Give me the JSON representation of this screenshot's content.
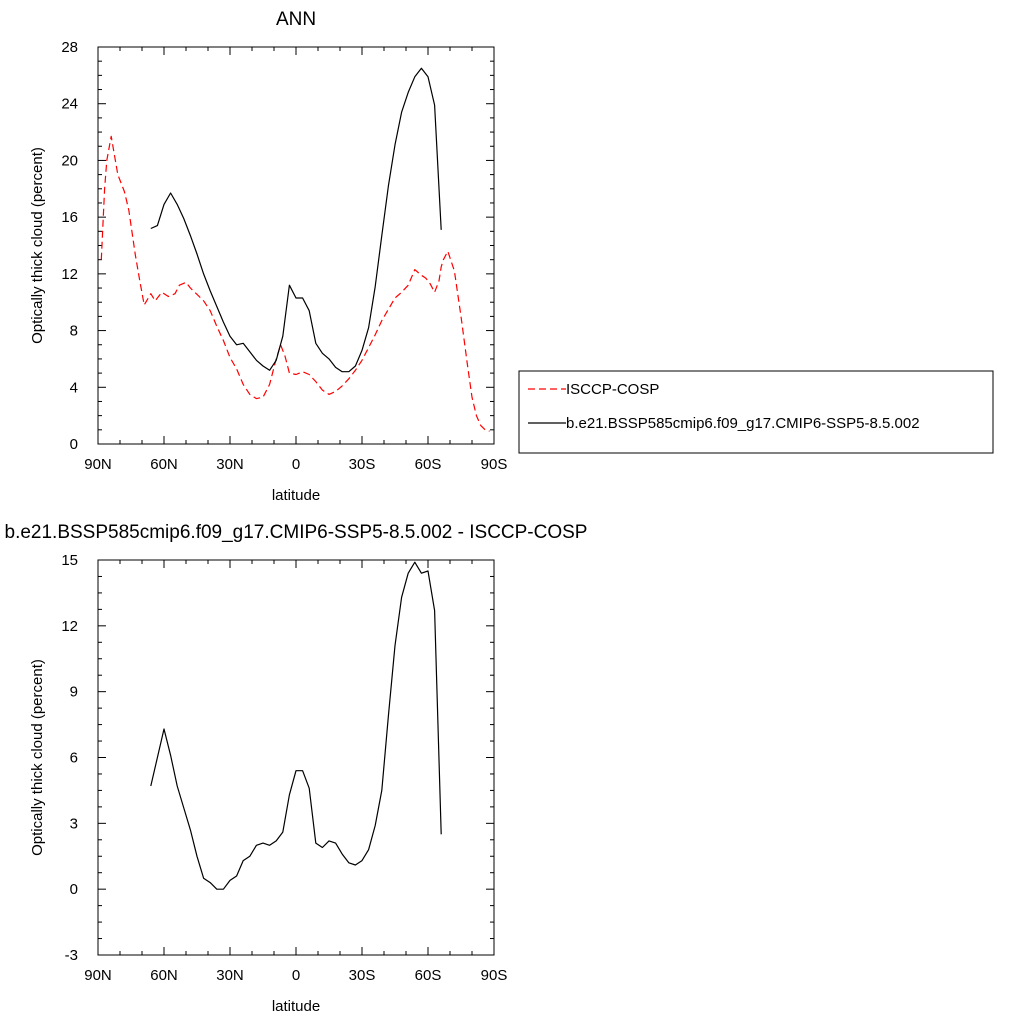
{
  "chart_data": [
    {
      "type": "line",
      "title": "ANN",
      "xlabel": "latitude",
      "ylabel": "Optically thick cloud (percent)",
      "xlim": [
        90,
        -90
      ],
      "ylim": [
        0,
        28
      ],
      "xticks": [
        90,
        60,
        30,
        0,
        -30,
        -60,
        -90
      ],
      "xtick_labels": [
        "90N",
        "60N",
        "30N",
        "0",
        "30S",
        "60S",
        "90S"
      ],
      "yticks": [
        0,
        4,
        8,
        12,
        16,
        20,
        24,
        28
      ],
      "ytick_labels": [
        "0",
        "4",
        "8",
        "12",
        "16",
        "20",
        "24",
        "28"
      ],
      "grid": false,
      "legend": "right",
      "series": [
        {
          "name": "ISCCP-COSP",
          "color": "#ff0000",
          "dash": "dashed",
          "x": [
            88.5,
            87,
            86,
            84,
            81,
            78,
            76,
            73,
            71,
            69,
            66,
            64,
            61,
            58,
            55,
            53,
            50,
            48,
            44,
            42,
            39,
            36,
            33,
            30,
            27,
            24,
            21,
            18,
            15,
            12,
            9,
            7,
            5,
            3,
            0,
            -3,
            -6,
            -9,
            -12,
            -15,
            -18,
            -21,
            -24,
            -27,
            -30,
            -33,
            -36,
            -39,
            -42,
            -45,
            -48,
            -51,
            -54,
            -57,
            -59,
            -61,
            -63,
            -65,
            -66,
            -67,
            -69,
            -72,
            -75,
            -78,
            -80,
            -82,
            -84,
            -86,
            -88
          ],
          "y": [
            13,
            18,
            20,
            21.7,
            19,
            17.8,
            16.5,
            13.3,
            11.5,
            9.8,
            10.6,
            10.1,
            10.7,
            10.4,
            10.6,
            11.2,
            11.4,
            11.0,
            10.4,
            10.1,
            9.4,
            8.3,
            7.3,
            6.1,
            5.3,
            4.2,
            3.5,
            3.2,
            3.3,
            4.2,
            6.0,
            7.0,
            6.2,
            5.0,
            4.9,
            5.1,
            4.9,
            4.4,
            3.8,
            3.5,
            3.7,
            4.1,
            4.6,
            5.2,
            5.9,
            6.8,
            7.7,
            8.7,
            9.5,
            10.3,
            10.7,
            11.2,
            12.3,
            11.9,
            11.7,
            11.3,
            10.7,
            11.5,
            12.5,
            13.0,
            13.6,
            12.2,
            9.0,
            5.5,
            3.3,
            2.0,
            1.3,
            1.0,
            0.9
          ]
        },
        {
          "name": "b.e21.BSSP585cmip6.f09_g17.CMIP6-SSP5-8.5.002",
          "color": "#000000",
          "dash": "solid",
          "x": [
            66,
            63,
            60,
            57,
            54,
            51,
            48,
            45,
            42,
            39,
            36,
            33,
            30,
            27,
            24,
            21,
            18,
            15,
            12,
            9,
            6,
            3,
            0,
            -3,
            -6,
            -9,
            -12,
            -15,
            -18,
            -21,
            -24,
            -27,
            -30,
            -33,
            -36,
            -39,
            -42,
            -45,
            -48,
            -51,
            -54,
            -57,
            -60,
            -63,
            -66
          ],
          "y": [
            15.2,
            15.4,
            16.9,
            17.7,
            16.9,
            15.9,
            14.7,
            13.4,
            12.0,
            10.8,
            9.7,
            8.6,
            7.6,
            7.0,
            7.1,
            6.5,
            5.9,
            5.5,
            5.2,
            5.9,
            7.6,
            11.2,
            10.3,
            10.3,
            9.4,
            7.1,
            6.4,
            6.0,
            5.4,
            5.1,
            5.1,
            5.5,
            6.6,
            8.2,
            11.1,
            14.7,
            18.2,
            21.1,
            23.4,
            24.8,
            25.9,
            26.5,
            25.9,
            23.9,
            15.1
          ]
        }
      ]
    },
    {
      "type": "line",
      "title": "b.e21.BSSP585cmip6.f09_g17.CMIP6-SSP5-8.5.002 - ISCCP-COSP",
      "xlabel": "latitude",
      "ylabel": "Optically thick cloud (percent)",
      "xlim": [
        90,
        -90
      ],
      "ylim": [
        -3,
        15
      ],
      "xticks": [
        90,
        60,
        30,
        0,
        -30,
        -60,
        -90
      ],
      "xtick_labels": [
        "90N",
        "60N",
        "30N",
        "0",
        "30S",
        "60S",
        "90S"
      ],
      "yticks": [
        -3,
        0,
        3,
        6,
        9,
        12,
        15
      ],
      "ytick_labels": [
        "-3",
        "0",
        "3",
        "6",
        "9",
        "12",
        "15"
      ],
      "grid": false,
      "series": [
        {
          "color": "#000000",
          "dash": "solid",
          "x": [
            66,
            63,
            60,
            57,
            54,
            51,
            48,
            45,
            42,
            39,
            36,
            33,
            30,
            27,
            24,
            21,
            18,
            15,
            12,
            9,
            6,
            3,
            0,
            -3,
            -6,
            -9,
            -12,
            -15,
            -18,
            -21,
            -24,
            -27,
            -30,
            -33,
            -36,
            -39,
            -42,
            -45,
            -48,
            -51,
            -54,
            -57,
            -60,
            -63,
            -66
          ],
          "y": [
            4.7,
            6.0,
            7.3,
            6.1,
            4.7,
            3.7,
            2.7,
            1.5,
            0.5,
            0.3,
            0.0,
            0.0,
            0.4,
            0.6,
            1.3,
            1.5,
            2.0,
            2.1,
            2.0,
            2.2,
            2.6,
            4.3,
            5.4,
            5.4,
            4.6,
            2.1,
            1.9,
            2.2,
            2.1,
            1.6,
            1.2,
            1.1,
            1.3,
            1.8,
            2.9,
            4.5,
            7.9,
            11.1,
            13.3,
            14.4,
            14.9,
            14.4,
            14.5,
            12.7,
            2.5
          ]
        }
      ]
    }
  ]
}
